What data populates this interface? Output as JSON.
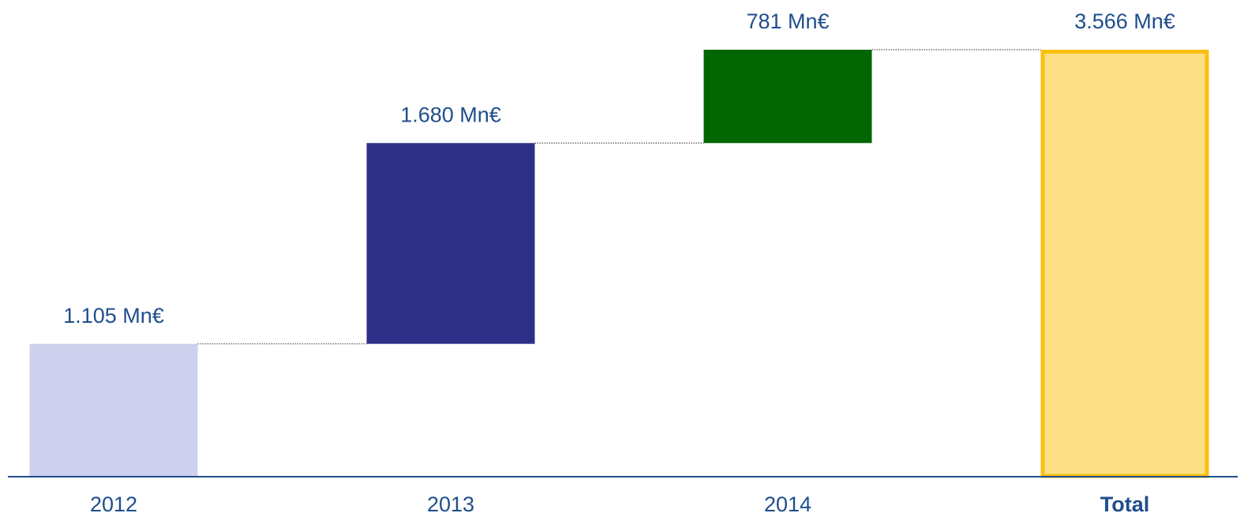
{
  "chart_data": {
    "type": "waterfall",
    "categories": [
      "2012",
      "2013",
      "2014",
      "Total"
    ],
    "values": [
      1105,
      1680,
      781,
      3566
    ],
    "value_labels": [
      "1.105 Mn€",
      "1.680 Mn€",
      "781 Mn€",
      "3.566 Mn€"
    ],
    "is_total": [
      false,
      false,
      false,
      true
    ],
    "colors": [
      "#cfd0ee",
      "#2e3088",
      "#026602",
      "#fde085"
    ],
    "total_border_color": "#fbbf12"
  }
}
